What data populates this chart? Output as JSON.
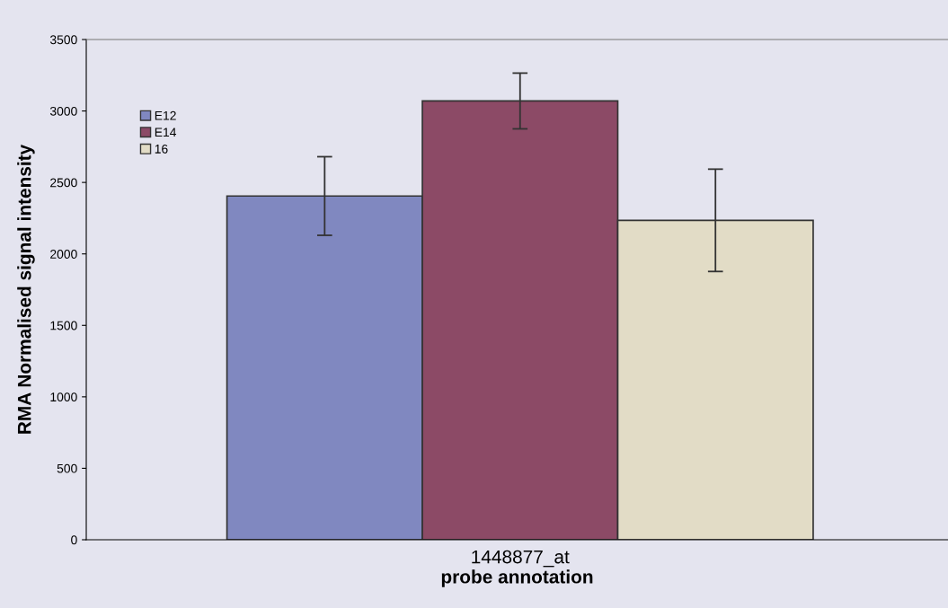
{
  "chart_data": {
    "type": "bar",
    "xlabel": "probe annotation",
    "ylabel": "RMA Normalised signal intensity",
    "categories": [
      "1448877_at"
    ],
    "series": [
      {
        "name": "E12",
        "color": "#8088c0",
        "values": [
          2405
        ],
        "errors": [
          275
        ]
      },
      {
        "name": "E14",
        "color": "#8c4a66",
        "values": [
          3070
        ],
        "errors": [
          195
        ]
      },
      {
        "name": "16",
        "color": "#e2dcc6",
        "values": [
          2235
        ],
        "errors": [
          358
        ]
      }
    ],
    "ylim": [
      0,
      3500
    ],
    "yticks": [
      0,
      500,
      1000,
      1500,
      2000,
      2500,
      3000,
      3500
    ],
    "grid": false,
    "legend": "top left"
  }
}
